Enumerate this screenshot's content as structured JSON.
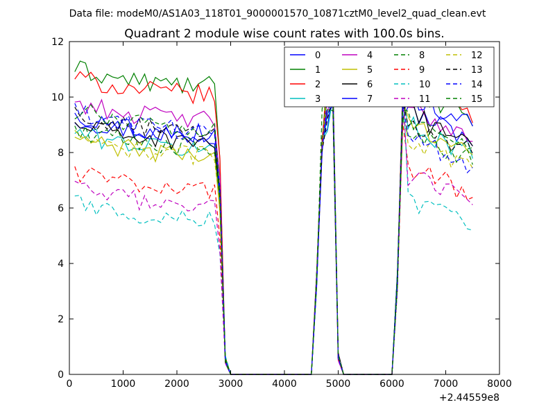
{
  "figure": {
    "suptitle": "Data file: modeM0/AS1A03_118T01_9000001570_10871cztM0_level2_quad_clean.evt"
  },
  "chart_data": {
    "type": "line",
    "title": "Quadrant 2 module wise count rates with 100.0s bins.",
    "xlabel": "",
    "ylabel": "",
    "x_offset_label": "+2.44559e8",
    "xlim": [
      0,
      8000
    ],
    "ylim": [
      0,
      12
    ],
    "x_ticks": [
      "0",
      "1000",
      "2000",
      "3000",
      "4000",
      "5000",
      "6000",
      "7000",
      "8000"
    ],
    "y_ticks": [
      "0",
      "2",
      "4",
      "6",
      "8",
      "10",
      "12"
    ],
    "grid": false,
    "legend_position": "top-right",
    "bins": {
      "x_start": 100,
      "step": 100,
      "count": 75
    },
    "profile": {
      "note": "x positions from bin start; first 27 bins pre-gap, bins 28-44 ~0, peak bins 45-49, gap 50-59, post-gap 60-74",
      "gap1_end_bin": 26
    },
    "series": [
      {
        "name": "0",
        "color": "#0000ff",
        "dash": "solid",
        "pre": 8.5,
        "post": 8.9
      },
      {
        "name": "1",
        "color": "#008000",
        "dash": "solid",
        "pre": 10.3,
        "post": 9.6
      },
      {
        "name": "2",
        "color": "#ff0000",
        "dash": "solid",
        "pre": 10.0,
        "post": 9.7
      },
      {
        "name": "3",
        "color": "#00bfbf",
        "dash": "solid",
        "pre": 8.0,
        "post": 8.4
      },
      {
        "name": "4",
        "color": "#bf00bf",
        "dash": "solid",
        "pre": 9.1,
        "post": 9.0
      },
      {
        "name": "5",
        "color": "#bfbf00",
        "dash": "solid",
        "pre": 7.8,
        "post": 8.5
      },
      {
        "name": "6",
        "color": "#000000",
        "dash": "solid",
        "pre": 8.3,
        "post": 8.8
      },
      {
        "name": "7",
        "color": "#0000ff",
        "dash": "solid",
        "pre": 8.6,
        "post": 9.5
      },
      {
        "name": "8",
        "color": "#008000",
        "dash": "dashed",
        "pre": 8.1,
        "post": 8.1
      },
      {
        "name": "9",
        "color": "#ff0000",
        "dash": "dashed",
        "pre": 6.6,
        "post": 6.9
      },
      {
        "name": "10",
        "color": "#00bfbf",
        "dash": "dashed",
        "pre": 5.5,
        "post": 5.7
      },
      {
        "name": "11",
        "color": "#bf00bf",
        "dash": "dashed",
        "pre": 6.0,
        "post": 6.6
      },
      {
        "name": "12",
        "color": "#bfbf00",
        "dash": "dashed",
        "pre": 7.8,
        "post": 7.9
      },
      {
        "name": "13",
        "color": "#000000",
        "dash": "dashed",
        "pre": 8.6,
        "post": 8.4
      },
      {
        "name": "14",
        "color": "#0000ff",
        "dash": "dashed",
        "pre": 8.7,
        "post": 7.9
      },
      {
        "name": "15",
        "color": "#008000",
        "dash": "dashed",
        "pre": 8.8,
        "post": 8.6
      }
    ]
  }
}
